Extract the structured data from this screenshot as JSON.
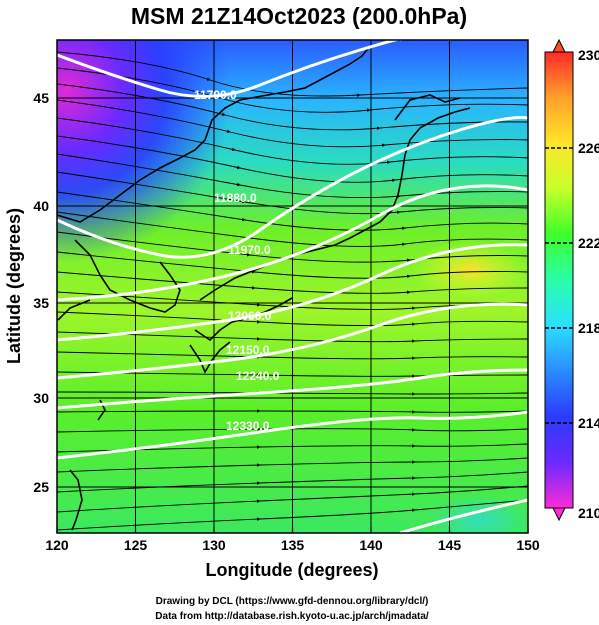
{
  "title": "MSM 21Z14Oct2023 (200.0hPa)",
  "xlabel": "Longitude (degrees)",
  "ylabel": "Latitude (degrees)",
  "credits": [
    "Drawing by DCL (https://www.gfd-dennou.org/library/dcl/)",
    "Data from http://database.rish.kyoto-u.ac.jp/arch/jmadata/"
  ],
  "x_ticks": [
    "120",
    "125",
    "130",
    "135",
    "140",
    "145",
    "150"
  ],
  "y_ticks": [
    "25",
    "30",
    "35",
    "40",
    "45"
  ],
  "colorbar": {
    "ticks": [
      "230",
      "226",
      "222",
      "218",
      "214",
      "210"
    ],
    "colors": [
      "#ff4a2a",
      "#ffa52a",
      "#ffe02a",
      "#ccff2a",
      "#5aff2a",
      "#2aff7a",
      "#2affd6",
      "#2ad6ff",
      "#2a8aff",
      "#2a3aff",
      "#4a2aff",
      "#9a2aff",
      "#ff2ad6"
    ]
  },
  "contour_labels": [
    "11790.0",
    "11880.0",
    "11970.0",
    "12060.0",
    "12150.0",
    "12240.0",
    "12330.0"
  ]
}
